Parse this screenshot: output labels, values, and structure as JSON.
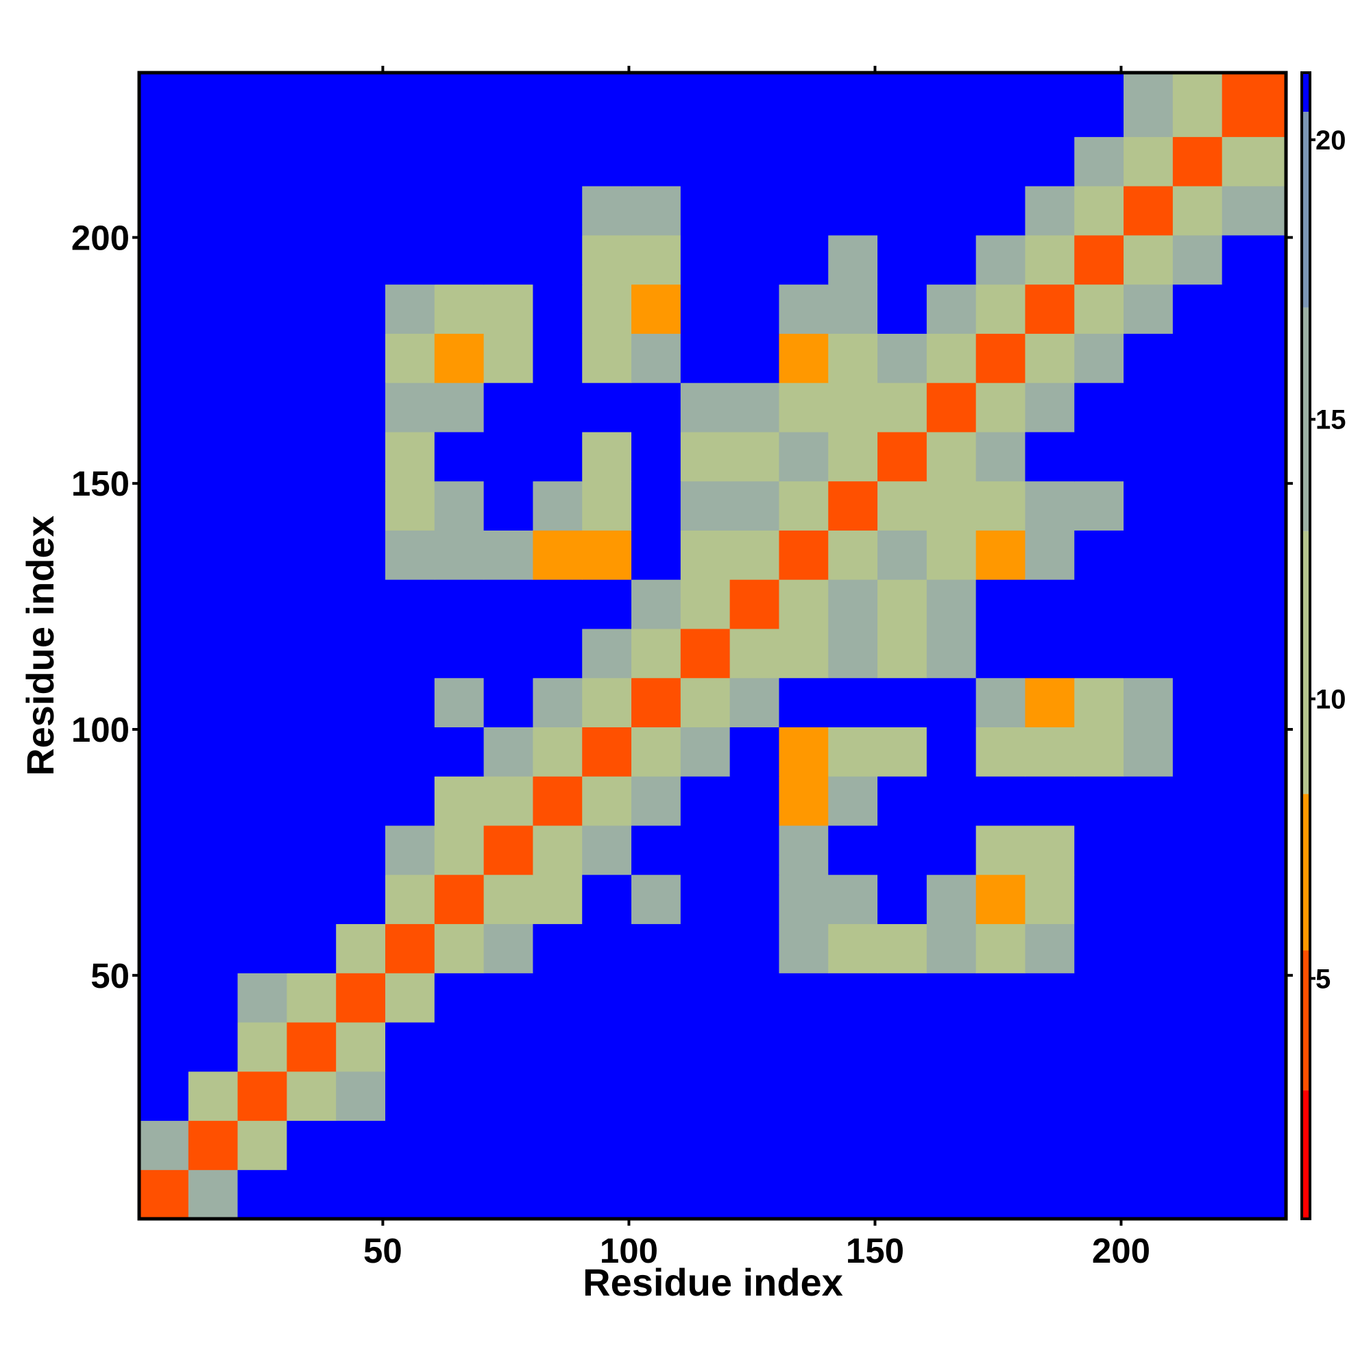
{
  "chart_data": {
    "type": "heatmap",
    "x_label": "Residue index",
    "y_label": "Residue index",
    "bins": [
      0.5,
      10.5,
      20.5,
      30.5,
      40.5,
      50.5,
      60.5,
      70.5,
      80.5,
      90.5,
      100.5,
      110.5,
      120.5,
      130.5,
      140.5,
      150.5,
      160.5,
      170.5,
      180.5,
      190.5,
      200.5,
      210.5,
      220.5,
      233.5
    ],
    "xlim": [
      0.5,
      233.5
    ],
    "ylim": [
      0.5,
      233.5
    ],
    "xticks": [
      50,
      100,
      150,
      200
    ],
    "yticks": [
      50,
      100,
      150,
      200
    ],
    "clim": [
      0.7,
      21.2
    ],
    "cticks": [
      5,
      10,
      15,
      20
    ],
    "colorscale": [
      {
        "value": 0.7,
        "color": "#ff0000"
      },
      {
        "value": 3,
        "color": "#ff5000"
      },
      {
        "value": 5.5,
        "color": "#ff9800"
      },
      {
        "value": 8.3,
        "color": "#b4c48e"
      },
      {
        "value": 13,
        "color": "#9cb0a4"
      },
      {
        "value": 17,
        "color": "#7c96b4"
      },
      {
        "value": 20.5,
        "color": "#0000ff"
      }
    ],
    "z": [
      [
        4,
        13,
        21,
        21,
        21,
        21,
        21,
        21,
        21,
        21,
        21,
        21,
        21,
        21,
        21,
        21,
        21,
        21,
        21,
        21,
        21,
        21,
        21
      ],
      [
        13,
        4,
        12,
        21,
        21,
        21,
        21,
        21,
        21,
        21,
        21,
        21,
        21,
        21,
        21,
        21,
        21,
        21,
        21,
        21,
        21,
        21,
        21
      ],
      [
        21,
        12,
        4,
        11,
        15,
        21,
        21,
        21,
        21,
        21,
        21,
        21,
        21,
        21,
        21,
        21,
        21,
        21,
        21,
        21,
        21,
        21,
        21
      ],
      [
        21,
        21,
        11,
        4,
        11,
        21,
        21,
        21,
        21,
        21,
        21,
        21,
        21,
        21,
        21,
        21,
        21,
        21,
        21,
        21,
        21,
        21,
        21
      ],
      [
        21,
        21,
        15,
        11,
        4,
        12,
        21,
        21,
        21,
        21,
        21,
        21,
        21,
        21,
        21,
        21,
        21,
        21,
        21,
        21,
        21,
        21,
        21
      ],
      [
        21,
        21,
        21,
        21,
        12,
        4,
        11,
        15,
        21,
        21,
        21,
        21,
        21,
        15,
        11,
        11,
        15,
        11,
        15,
        21,
        21,
        21,
        21
      ],
      [
        21,
        21,
        21,
        21,
        21,
        11,
        4,
        11,
        11,
        21,
        15,
        21,
        21,
        15,
        15,
        21,
        15,
        7,
        11,
        21,
        21,
        21,
        21
      ],
      [
        21,
        21,
        21,
        21,
        21,
        15,
        11,
        4,
        11,
        15,
        21,
        21,
        21,
        15,
        21,
        21,
        21,
        11,
        11,
        21,
        21,
        21,
        21
      ],
      [
        21,
        21,
        21,
        21,
        21,
        21,
        11,
        11,
        4,
        11,
        15,
        21,
        21,
        7,
        15,
        21,
        21,
        21,
        21,
        21,
        21,
        21,
        21
      ],
      [
        21,
        21,
        21,
        21,
        21,
        21,
        21,
        15,
        11,
        4,
        11,
        15,
        21,
        7,
        11,
        11,
        21,
        11,
        11,
        11,
        15,
        21,
        21
      ],
      [
        21,
        21,
        21,
        21,
        21,
        21,
        15,
        21,
        15,
        11,
        4,
        12,
        15,
        21,
        21,
        21,
        21,
        15,
        7,
        11,
        15,
        21,
        21
      ],
      [
        21,
        21,
        21,
        21,
        21,
        21,
        21,
        21,
        21,
        15,
        12,
        4,
        12,
        11,
        15,
        11,
        15,
        21,
        21,
        21,
        21,
        21,
        21
      ],
      [
        21,
        21,
        21,
        21,
        21,
        21,
        21,
        21,
        21,
        21,
        15,
        12,
        4,
        11,
        15,
        11,
        15,
        21,
        21,
        21,
        21,
        21,
        21
      ],
      [
        21,
        21,
        21,
        21,
        21,
        15,
        15,
        15,
        7,
        7,
        21,
        11,
        11,
        4,
        11,
        15,
        11,
        7,
        15,
        21,
        21,
        21,
        21
      ],
      [
        21,
        21,
        21,
        21,
        21,
        11,
        15,
        21,
        15,
        11,
        21,
        15,
        15,
        11,
        4,
        11,
        11,
        11,
        15,
        15,
        21,
        21,
        21
      ],
      [
        21,
        21,
        21,
        21,
        21,
        11,
        21,
        21,
        21,
        11,
        21,
        11,
        11,
        15,
        11,
        4,
        11,
        15,
        21,
        21,
        21,
        21,
        21
      ],
      [
        21,
        21,
        21,
        21,
        21,
        15,
        15,
        21,
        21,
        21,
        21,
        15,
        15,
        11,
        11,
        11,
        4,
        11,
        15,
        21,
        21,
        21,
        21
      ],
      [
        21,
        21,
        21,
        21,
        21,
        11,
        7,
        11,
        21,
        11,
        15,
        21,
        21,
        7,
        11,
        15,
        11,
        4,
        11,
        15,
        21,
        21,
        21
      ],
      [
        21,
        21,
        21,
        21,
        21,
        15,
        11,
        11,
        21,
        11,
        7,
        21,
        21,
        15,
        15,
        21,
        15,
        11,
        4,
        11,
        15,
        21,
        21
      ],
      [
        21,
        21,
        21,
        21,
        21,
        21,
        21,
        21,
        21,
        11,
        11,
        21,
        21,
        21,
        15,
        21,
        21,
        15,
        11,
        4,
        11,
        15,
        21
      ],
      [
        21,
        21,
        21,
        21,
        21,
        21,
        21,
        21,
        21,
        15,
        15,
        21,
        21,
        21,
        21,
        21,
        21,
        21,
        15,
        11,
        4,
        11,
        15
      ],
      [
        21,
        21,
        21,
        21,
        21,
        21,
        21,
        21,
        21,
        21,
        21,
        21,
        21,
        21,
        21,
        21,
        21,
        21,
        21,
        15,
        11,
        4,
        12
      ],
      [
        21,
        21,
        21,
        21,
        21,
        21,
        21,
        21,
        21,
        21,
        21,
        21,
        21,
        21,
        21,
        21,
        21,
        21,
        21,
        21,
        15,
        12,
        4
      ]
    ]
  }
}
